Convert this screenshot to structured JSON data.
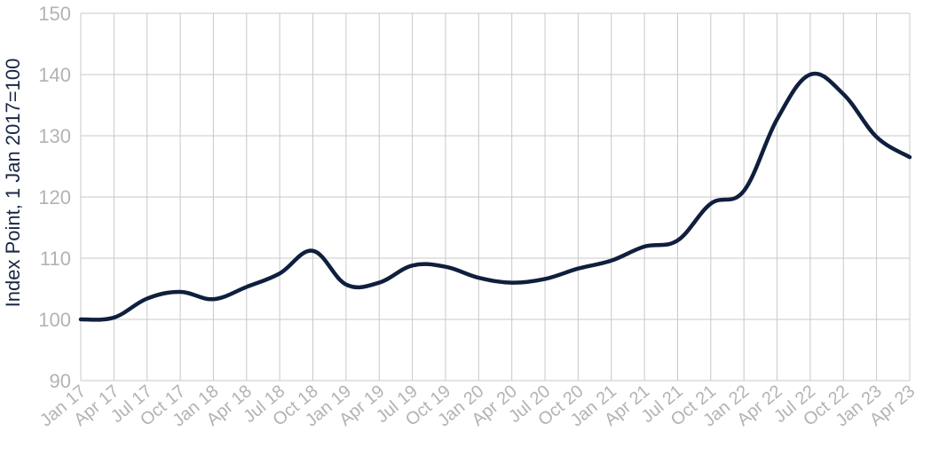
{
  "chart_data": {
    "type": "line",
    "title": "",
    "xlabel": "",
    "ylabel": "Index Point, 1 Jan 2017=100",
    "ylim": [
      90,
      150
    ],
    "yticks": [
      90,
      100,
      110,
      120,
      130,
      140,
      150
    ],
    "grid": true,
    "line_color": "#0f1f3d",
    "grid_color": "#c8c8c8",
    "tick_color": "#b3b3b3",
    "categories": [
      "Jan 17",
      "Apr 17",
      "Jul 17",
      "Oct 17",
      "Jan 18",
      "Apr 18",
      "Jul 18",
      "Oct 18",
      "Jan 19",
      "Apr 19",
      "Jul 19",
      "Oct 19",
      "Jan 20",
      "Apr 20",
      "Jul 20",
      "Oct 20",
      "Jan 21",
      "Apr 21",
      "Jul 21",
      "Oct 21",
      "Jan 22",
      "Apr 22",
      "Jul 22",
      "Oct 22",
      "Jan 23",
      "Apr 23"
    ],
    "values": [
      100.0,
      100.3,
      103.4,
      104.5,
      103.3,
      105.3,
      107.5,
      111.2,
      105.7,
      106.0,
      108.8,
      108.6,
      106.8,
      106.0,
      106.6,
      108.3,
      109.6,
      111.9,
      112.9,
      118.9,
      121.0,
      132.7,
      140.0,
      136.8,
      129.8,
      126.5
    ]
  }
}
